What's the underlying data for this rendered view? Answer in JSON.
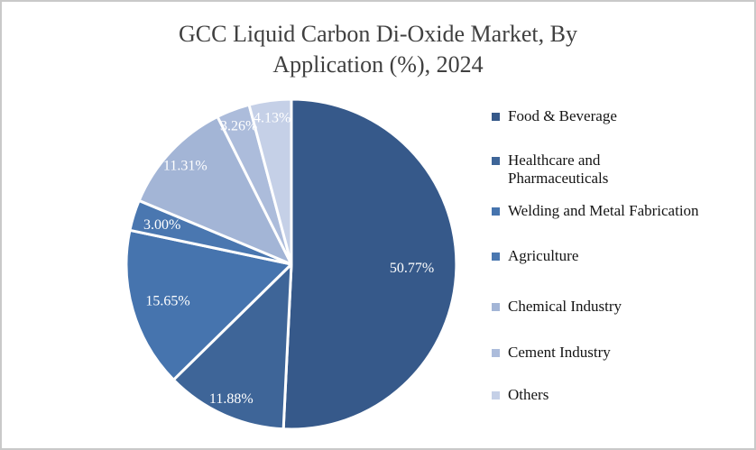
{
  "window": {
    "background_color": "#ffffff",
    "border_color": "#c9c9c9"
  },
  "chart_data": {
    "type": "pie",
    "title": "GCC Liquid Carbon Di-Oxide Market, By Application (%), 2024",
    "title_lines": [
      "GCC Liquid Carbon Di-Oxide Market, By",
      "Application (%), 2024"
    ],
    "unit": "%",
    "year": "2024",
    "legend_position": "right",
    "direction": "clockwise",
    "start_angle_deg": 0,
    "data_label_color": "#ffffff",
    "title_color": "#404040",
    "slice_border_color": "#ffffff",
    "slices": [
      {
        "label": "Food & Beverage",
        "legend_label": "Food & Beverage",
        "value": 50.77,
        "display": "50.77%",
        "color": "#36598a",
        "label_r": 0.73
      },
      {
        "label": "Healthcare and Pharmaceuticals",
        "legend_label": "Healthcare and\nPharmaceuticals",
        "value": 11.88,
        "display": "11.88%",
        "color": "#3e6598",
        "label_r": 0.89
      },
      {
        "label": "Welding and Metal Fabrication",
        "legend_label": "Welding and Metal Fabrication",
        "value": 15.65,
        "display": "15.65%",
        "color": "#4674ae",
        "label_r": 0.78
      },
      {
        "label": "Agriculture",
        "legend_label": "Agriculture",
        "value": 3.0,
        "display": "3.00%",
        "color": "#4a77b0",
        "label_r": 0.82
      },
      {
        "label": "Chemical Industry",
        "legend_label": "Chemical Industry",
        "value": 11.31,
        "display": "11.31%",
        "color": "#a3b5d6",
        "label_r": 0.88
      },
      {
        "label": "Cement Industry",
        "legend_label": "Cement Industry",
        "value": 3.26,
        "display": "3.26%",
        "color": "#acbcdb",
        "label_r": 0.9
      },
      {
        "label": "Others",
        "legend_label": "Others",
        "value": 4.13,
        "display": "4.13%",
        "color": "#c5d0e7",
        "label_r": 0.9
      }
    ]
  }
}
